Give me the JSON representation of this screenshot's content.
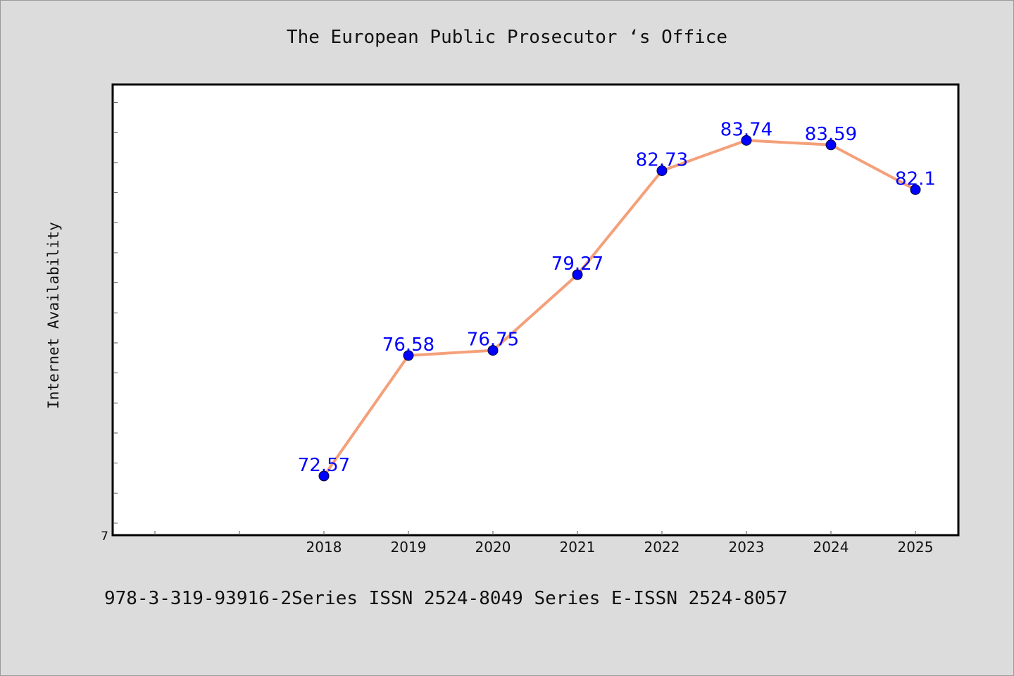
{
  "chart_data": {
    "type": "line",
    "title": "The European Public Prosecutor ‘s Office",
    "xlabel": "",
    "ylabel": "Internet Availability",
    "categories": [
      "2018",
      "2019",
      "2020",
      "2021",
      "2022",
      "2023",
      "2024",
      "2025"
    ],
    "series": [
      {
        "values": [
          72.57,
          76.58,
          76.75,
          79.27,
          82.73,
          83.74,
          83.59,
          82.1
        ],
        "data_labels": [
          "72.57",
          "76.58",
          "76.75",
          "79.27",
          "82.73",
          "83.74",
          "83.59",
          "82.1"
        ],
        "line_color": "#f4a07a",
        "marker_color": "#0000ff"
      }
    ],
    "y_tick_labels": [
      "7"
    ],
    "ylim": [
      70.6,
      85.6
    ],
    "y_minor_step": 1,
    "grid": false,
    "legend": "none"
  },
  "footer": {
    "text": "978-3-319-93916-2Series ISSN 2524-8049 Series E-ISSN 2524-8057"
  },
  "colors": {
    "background": "#dcdcdc",
    "plot_background": "#ffffff",
    "line": "#f4a07a",
    "marker": "#0000ff",
    "data_label": "#0000ff"
  }
}
